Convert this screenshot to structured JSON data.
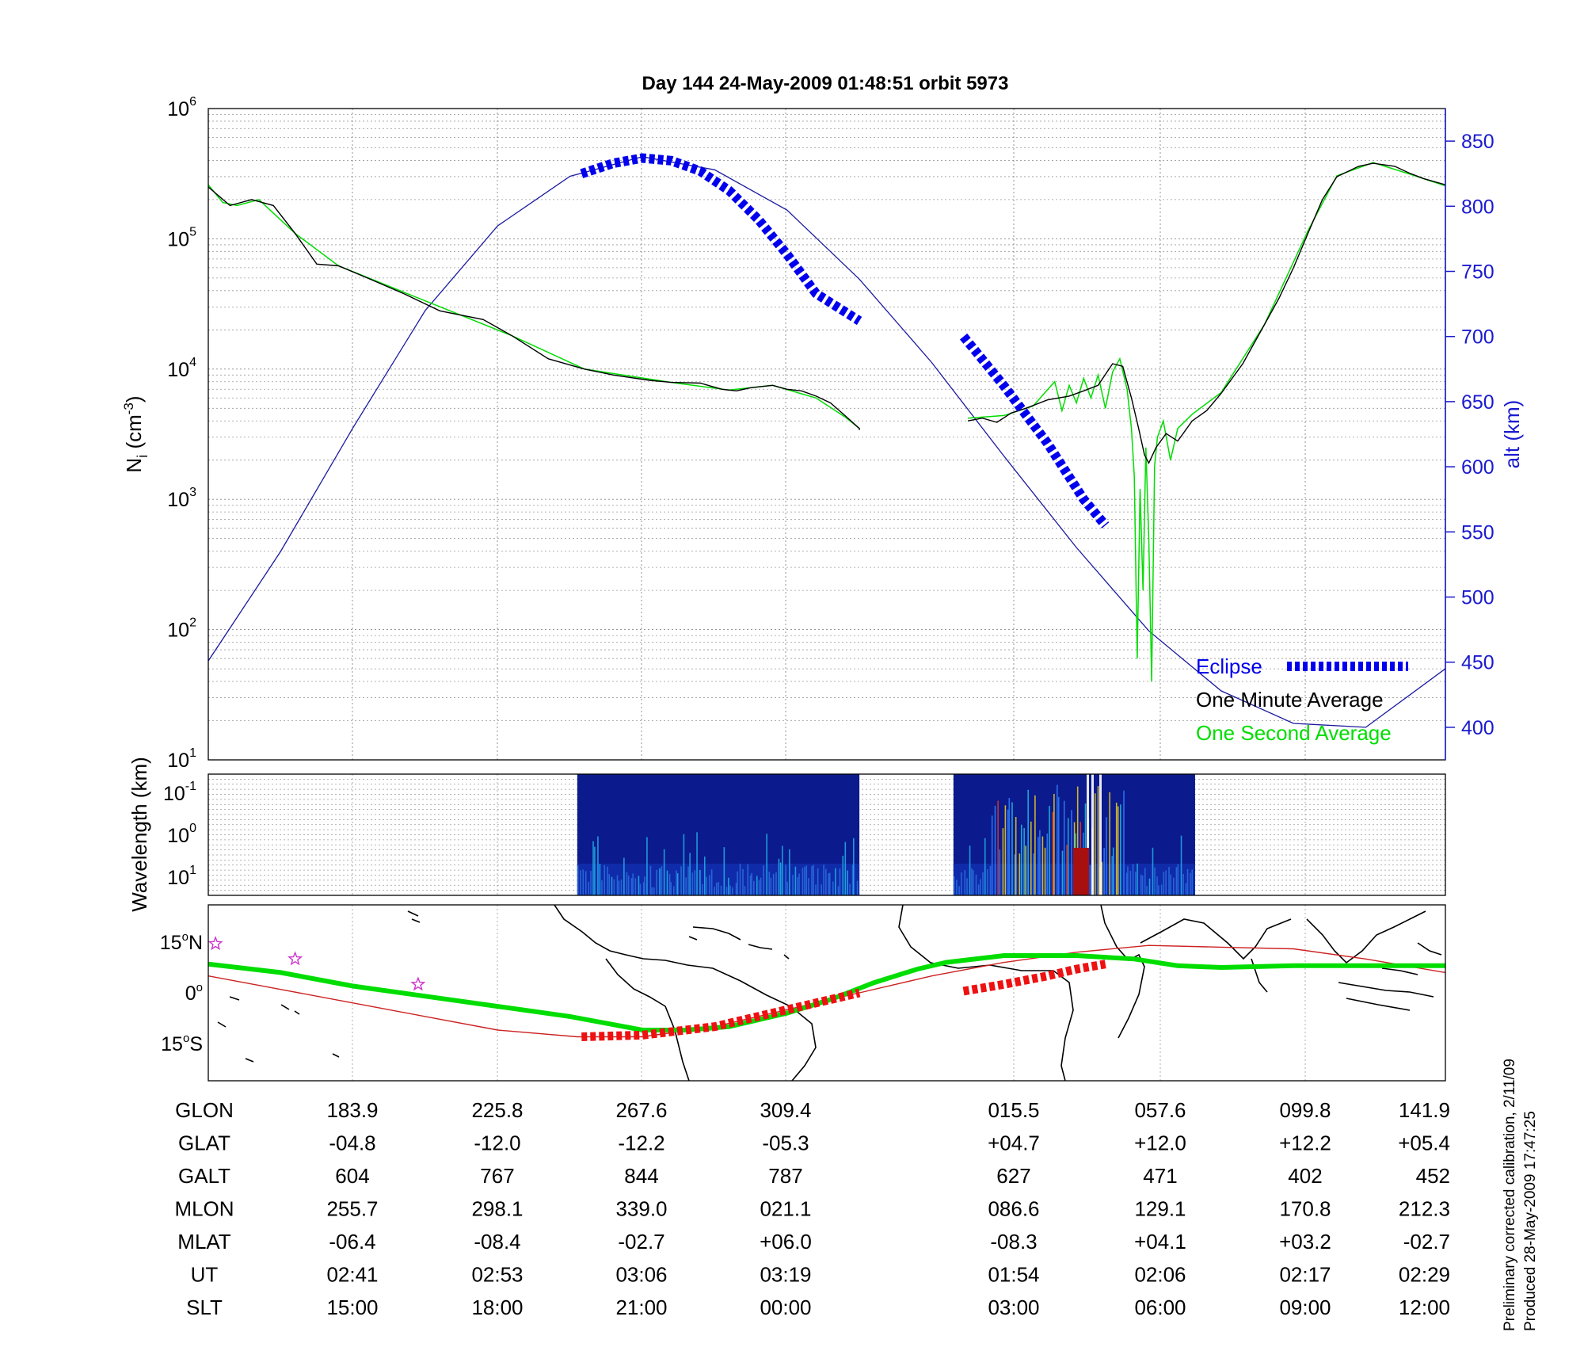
{
  "title": "Day 144  24-May-2009 01:48:51   orbit 5973",
  "colors": {
    "eclipse": "#0000ee",
    "one_minute": "#000000",
    "one_second": "#00dd00",
    "altitude": "#1a1aa0",
    "axis_right": "#1a1ad0",
    "red_track": "#cc2222",
    "eclipse_map": "#ee1111",
    "stars": "#cc33cc"
  },
  "chart_data": [
    {
      "type": "line",
      "title": "Day 144  24-May-2009 01:48:51   orbit 5973",
      "ylabel": "N_i (cm^-3)",
      "ylabel_main": "N",
      "ylabel_sub": "i",
      "ylabel_rest": " (cm",
      "ylabel_exp": "-3",
      "ylabel_close": ")",
      "yscale": "log",
      "ylim": [
        10,
        1000000
      ],
      "yticks": [
        {
          "base": "10",
          "exp": "1",
          "v": 1
        },
        {
          "base": "10",
          "exp": "2",
          "v": 2
        },
        {
          "base": "10",
          "exp": "3",
          "v": 3
        },
        {
          "base": "10",
          "exp": "4",
          "v": 4
        },
        {
          "base": "10",
          "exp": "5",
          "v": 5
        },
        {
          "base": "10",
          "exp": "6",
          "v": 6
        }
      ],
      "y2label": "alt (km)",
      "y2lim": [
        375,
        875
      ],
      "y2ticks": [
        "400",
        "450",
        "500",
        "550",
        "600",
        "650",
        "700",
        "750",
        "800",
        "850"
      ],
      "xlim": [
        0,
        8.55
      ],
      "grid": true,
      "legend_position": "lower-right",
      "legend": [
        "Eclipse",
        "One Minute Average",
        "One Second Average"
      ],
      "series": [
        {
          "name": "One Minute Average",
          "segments": [
            [
              [
                0,
                250000
              ],
              [
                0.15,
                180000
              ],
              [
                0.3,
                200000
              ],
              [
                0.45,
                180000
              ],
              [
                0.6,
                110000
              ],
              [
                0.75,
                64000
              ],
              [
                0.9,
                62000
              ],
              [
                1.1,
                50000
              ],
              [
                1.35,
                38000
              ],
              [
                1.6,
                28000
              ],
              [
                1.9,
                24000
              ],
              [
                2.1,
                18000
              ],
              [
                2.35,
                12000
              ],
              [
                2.6,
                10000
              ],
              [
                2.8,
                9000
              ],
              [
                3.05,
                8200
              ],
              [
                3.2,
                7900
              ],
              [
                3.4,
                7800
              ],
              [
                3.55,
                7000
              ],
              [
                3.65,
                6800
              ],
              [
                3.75,
                7200
              ],
              [
                3.9,
                7500
              ],
              [
                4.0,
                7000
              ],
              [
                4.1,
                6800
              ],
              [
                4.2,
                6200
              ],
              [
                4.3,
                5500
              ],
              [
                4.4,
                4400
              ],
              [
                4.5,
                3500
              ],
              [
                4.5,
                3400
              ],
              [
                4.5,
                3500
              ]
            ],
            [
              [
                5.25,
                4000
              ],
              [
                5.35,
                4200
              ],
              [
                5.45,
                3900
              ],
              [
                5.55,
                4600
              ],
              [
                5.65,
                5000
              ],
              [
                5.8,
                5800
              ],
              [
                5.95,
                6200
              ],
              [
                6.05,
                6800
              ],
              [
                6.15,
                7500
              ],
              [
                6.25,
                11000
              ],
              [
                6.32,
                10500
              ],
              [
                6.38,
                6000
              ],
              [
                6.43,
                3500
              ],
              [
                6.47,
                2200
              ],
              [
                6.5,
                1900
              ],
              [
                6.55,
                2500
              ],
              [
                6.62,
                3200
              ],
              [
                6.7,
                2800
              ],
              [
                6.8,
                4000
              ],
              [
                6.9,
                4800
              ],
              [
                7.0,
                6500
              ],
              [
                7.15,
                11000
              ],
              [
                7.3,
                22000
              ],
              [
                7.4,
                35000
              ],
              [
                7.5,
                60000
              ],
              [
                7.6,
                110000
              ],
              [
                7.7,
                200000
              ],
              [
                7.8,
                300000
              ],
              [
                7.95,
                360000
              ],
              [
                8.05,
                380000
              ],
              [
                8.2,
                360000
              ],
              [
                8.3,
                320000
              ],
              [
                8.4,
                290000
              ],
              [
                8.55,
                260000
              ]
            ]
          ]
        },
        {
          "name": "One Second Average",
          "segments": [
            [
              [
                0,
                260000
              ],
              [
                0.1,
                190000
              ],
              [
                0.2,
                180000
              ],
              [
                0.35,
                200000
              ],
              [
                0.6,
                110000
              ],
              [
                0.9,
                62000
              ],
              [
                1.4,
                37000
              ],
              [
                2.1,
                18000
              ],
              [
                2.6,
                10000
              ],
              [
                3.2,
                7900
              ],
              [
                3.6,
                6900
              ],
              [
                3.9,
                7500
              ],
              [
                4.2,
                6000
              ],
              [
                4.4,
                4300
              ],
              [
                4.5,
                3500
              ]
            ],
            [
              [
                5.25,
                4200
              ],
              [
                5.5,
                4400
              ],
              [
                5.7,
                5200
              ],
              [
                5.85,
                8000
              ],
              [
                5.9,
                4800
              ],
              [
                5.95,
                7500
              ],
              [
                6.0,
                5500
              ],
              [
                6.05,
                8500
              ],
              [
                6.1,
                6000
              ],
              [
                6.15,
                9000
              ],
              [
                6.2,
                5000
              ],
              [
                6.25,
                9500
              ],
              [
                6.3,
                12000
              ],
              [
                6.35,
                7000
              ],
              [
                6.38,
                3500
              ],
              [
                6.4,
                1500
              ],
              [
                6.42,
                60
              ],
              [
                6.44,
                1200
              ],
              [
                6.46,
                200
              ],
              [
                6.48,
                2500
              ],
              [
                6.5,
                500
              ],
              [
                6.52,
                40
              ],
              [
                6.54,
                1800
              ],
              [
                6.56,
                3000
              ],
              [
                6.6,
                4000
              ],
              [
                6.65,
                2000
              ],
              [
                6.7,
                3500
              ],
              [
                6.8,
                4500
              ],
              [
                7.0,
                6600
              ],
              [
                7.3,
                22000
              ],
              [
                7.6,
                115000
              ],
              [
                7.8,
                305000
              ],
              [
                8.05,
                385000
              ],
              [
                8.3,
                315000
              ],
              [
                8.55,
                255000
              ]
            ]
          ]
        },
        {
          "name": "Altitude",
          "axis": "alt (km)",
          "points": [
            [
              0,
              451
            ],
            [
              0.5,
              535
            ],
            [
              1.0,
              630
            ],
            [
              1.5,
              720
            ],
            [
              2.0,
              785
            ],
            [
              2.5,
              823
            ],
            [
              3.0,
              838
            ],
            [
              3.5,
              828
            ],
            [
              4.0,
              797
            ],
            [
              4.5,
              744
            ],
            [
              5.0,
              680
            ],
            [
              5.5,
              608
            ],
            [
              6.0,
              538
            ],
            [
              6.5,
              474
            ],
            [
              7.0,
              428
            ],
            [
              7.5,
              403
            ],
            [
              8.0,
              400
            ],
            [
              8.55,
              445
            ]
          ]
        },
        {
          "name": "Eclipse",
          "points": [
            [
              2.58,
              825
            ],
            [
              2.8,
              833
            ],
            [
              3.0,
              837
            ],
            [
              3.2,
              835
            ],
            [
              3.4,
              827
            ],
            [
              3.6,
              812
            ],
            [
              3.8,
              790
            ],
            [
              4.0,
              763
            ],
            [
              4.2,
              733
            ],
            [
              4.5,
              712
            ]
          ],
          "points2": [
            [
              5.22,
              700
            ],
            [
              5.5,
              662
            ],
            [
              5.8,
              618
            ],
            [
              6.05,
              575
            ],
            [
              6.2,
              555
            ]
          ]
        }
      ]
    },
    {
      "type": "heatmap",
      "ylabel": "Wavelength (km)",
      "ylabel_text": "Wavelength (km)",
      "yticks": [
        {
          "base": "10",
          "exp": "-1"
        },
        {
          "base": "10",
          "exp": "0"
        },
        {
          "base": "10",
          "exp": "1"
        }
      ],
      "blocks": [
        [
          2.55,
          4.5
        ],
        [
          5.15,
          6.82
        ]
      ]
    },
    {
      "type": "map",
      "yticks": [
        {
          "deg": "15",
          "hem": "N",
          "lat": 15
        },
        {
          "deg": "0",
          "hem": "",
          "lat": 0
        },
        {
          "deg": "15",
          "hem": "S",
          "lat": -15
        }
      ],
      "ylim": [
        -26,
        26
      ],
      "green_track": [
        [
          0,
          8.5
        ],
        [
          0.5,
          6
        ],
        [
          1.0,
          2
        ],
        [
          1.5,
          -1
        ],
        [
          2.0,
          -4
        ],
        [
          2.5,
          -7
        ],
        [
          3.0,
          -11
        ],
        [
          3.3,
          -11
        ],
        [
          3.6,
          -10
        ],
        [
          4.0,
          -6
        ],
        [
          4.3,
          -2
        ],
        [
          4.6,
          3
        ],
        [
          4.9,
          7
        ],
        [
          5.1,
          9
        ],
        [
          5.5,
          11
        ],
        [
          6.0,
          11
        ],
        [
          6.4,
          10
        ],
        [
          6.7,
          8
        ],
        [
          7.0,
          7.5
        ],
        [
          7.5,
          8
        ],
        [
          8.0,
          8
        ],
        [
          8.55,
          8
        ]
      ],
      "red_track": [
        [
          0,
          5
        ],
        [
          0.5,
          1
        ],
        [
          1.0,
          -3
        ],
        [
          1.5,
          -7
        ],
        [
          2.0,
          -11
        ],
        [
          2.55,
          -13
        ],
        [
          3.0,
          -13
        ],
        [
          3.5,
          -10
        ],
        [
          4.0,
          -5
        ],
        [
          4.5,
          0
        ],
        [
          5.0,
          5
        ],
        [
          5.5,
          9
        ],
        [
          6.0,
          12
        ],
        [
          6.5,
          14
        ],
        [
          7.0,
          13.5
        ],
        [
          7.5,
          13
        ],
        [
          8.0,
          10
        ],
        [
          8.55,
          6
        ]
      ],
      "eclipse_track_1": [
        [
          2.58,
          -13
        ],
        [
          3.0,
          -12.5
        ],
        [
          3.5,
          -10
        ],
        [
          4.0,
          -5
        ],
        [
          4.5,
          0
        ]
      ],
      "eclipse_track_2": [
        [
          5.22,
          0.5
        ],
        [
          5.5,
          2.5
        ],
        [
          5.8,
          5
        ],
        [
          6.0,
          7
        ],
        [
          6.2,
          8.5
        ]
      ],
      "stars": [
        [
          0.05,
          14.5
        ],
        [
          0.6,
          10
        ],
        [
          1.45,
          2.5
        ]
      ]
    }
  ],
  "positions_table": {
    "row_labels": [
      "GLON",
      "GLAT",
      "GALT",
      "MLON",
      "MLAT",
      "UT",
      "SLT"
    ],
    "columns": [
      [
        "183.9",
        "-04.8",
        "604",
        "255.7",
        "-06.4",
        "02:41",
        "15:00"
      ],
      [
        "225.8",
        "-12.0",
        "767",
        "298.1",
        "-08.4",
        "02:53",
        "18:00"
      ],
      [
        "267.6",
        "-12.2",
        "844",
        "339.0",
        "-02.7",
        "03:06",
        "21:00"
      ],
      [
        "309.4",
        "-05.3",
        "787",
        "021.1",
        "+06.0",
        "03:19",
        "00:00"
      ],
      [
        "015.5",
        "+04.7",
        "627",
        "086.6",
        "-08.3",
        "01:54",
        "03:00"
      ],
      [
        "057.6",
        "+12.0",
        "471",
        "129.1",
        "+04.1",
        "02:06",
        "06:00"
      ],
      [
        "099.8",
        "+12.2",
        "402",
        "170.8",
        "+03.2",
        "02:17",
        "09:00"
      ],
      [
        "141.9",
        "+05.4",
        "452",
        "212.3",
        "-02.7",
        "02:29",
        "12:00"
      ]
    ]
  },
  "footnotes": [
    "Preliminary corrected calibration, 2/11/09",
    "Produced 28-May-2009 17:47:25"
  ]
}
